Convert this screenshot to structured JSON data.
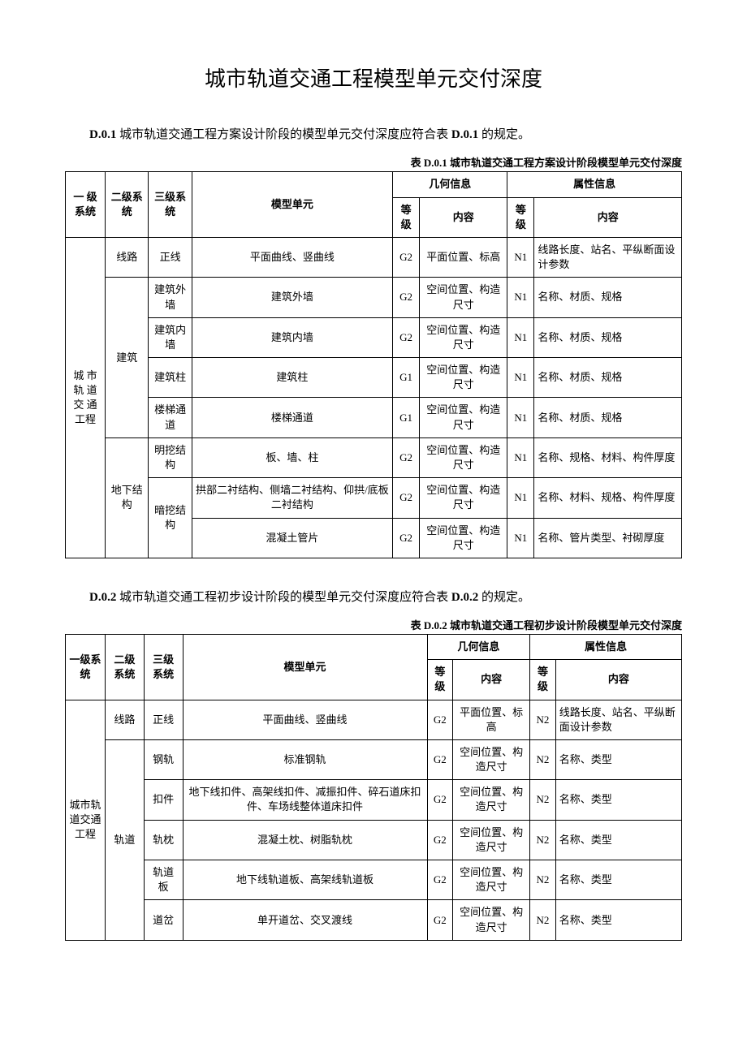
{
  "title": "城市轨道交通工程模型单元交付深度",
  "section1": {
    "intro_prefix": "D.0.1",
    "intro_mid": " 城市轨道交通工程方案设计阶段的模型单元交付深度应符合表 ",
    "intro_ref": "D.0.1",
    "intro_suffix": " 的规定。",
    "caption": "表 D.0.1 城市轨道交通工程方案设计阶段模型单元交付深度",
    "headers": {
      "lv1": "一 级系统",
      "lv2": "二级系统",
      "lv3": "三级系统",
      "unit": "模型单元",
      "geo": "几何信息",
      "attr": "属性信息",
      "grade": "等级",
      "content": "内容"
    },
    "lv1": "城 市轨 道交 通工程",
    "rows": [
      {
        "lv2": "线路",
        "lv2_rowspan": 1,
        "lv3": "正线",
        "lv3_rowspan": 1,
        "unit": "平面曲线、竖曲线",
        "g": "G2",
        "gc": "平面位置、标高",
        "a": "N1",
        "ac": "线路长度、站名、平纵断面设计参数"
      },
      {
        "lv2": "建筑",
        "lv2_rowspan": 4,
        "lv3": "建筑外墙",
        "lv3_rowspan": 1,
        "unit": "建筑外墙",
        "g": "G2",
        "gc": "空间位置、构造尺寸",
        "a": "N1",
        "ac": "名称、材质、规格"
      },
      {
        "lv3": "建筑内墙",
        "lv3_rowspan": 1,
        "unit": "建筑内墙",
        "g": "G2",
        "gc": "空间位置、构造尺寸",
        "a": "N1",
        "ac": "名称、材质、规格"
      },
      {
        "lv3": "建筑柱",
        "lv3_rowspan": 1,
        "unit": "建筑柱",
        "g": "G1",
        "gc": "空间位置、构造尺寸",
        "a": "N1",
        "ac": "名称、材质、规格"
      },
      {
        "lv3": "楼梯通道",
        "lv3_rowspan": 1,
        "unit": "楼梯通道",
        "g": "G1",
        "gc": "空间位置、构造尺寸",
        "a": "N1",
        "ac": "名称、材质、规格"
      },
      {
        "lv2": "地下结构",
        "lv2_rowspan": 3,
        "lv3": "明挖结构",
        "lv3_rowspan": 1,
        "unit": "板、墙、柱",
        "g": "G2",
        "gc": "空间位置、构造尺寸",
        "a": "N1",
        "ac": "名称、规格、材料、构件厚度"
      },
      {
        "lv3": "暗挖结构",
        "lv3_rowspan": 2,
        "unit": "拱部二衬结构、侧墙二衬结构、仰拱/底板二衬结构",
        "g": "G2",
        "gc": "空间位置、构造尺寸",
        "a": "N1",
        "ac": "名称、材料、规格、构件厚度"
      },
      {
        "unit": "混凝土管片",
        "g": "G2",
        "gc": "空间位置、构造尺寸",
        "a": "N1",
        "ac": "名称、管片类型、衬砌厚度"
      }
    ]
  },
  "section2": {
    "intro_prefix": "D.0.2",
    "intro_mid": " 城市轨道交通工程初步设计阶段的模型单元交付深度应符合表 ",
    "intro_ref": "D.0.2",
    "intro_suffix": " 的规定。",
    "caption": "表 D.0.2 城市轨道交通工程初步设计阶段模型单元交付深度",
    "headers": {
      "lv1": "一级系统",
      "lv2": "二级系统",
      "lv3": "三级系统",
      "unit": "模型单元",
      "geo": "几何信息",
      "attr": "属性信息",
      "grade": "等级",
      "content": "内容"
    },
    "lv1": "城市轨道交通工程",
    "rows": [
      {
        "lv2": "线路",
        "lv2_rowspan": 1,
        "lv3": "正线",
        "lv3_rowspan": 1,
        "unit": "平面曲线、竖曲线",
        "g": "G2",
        "gc": "平面位置、标高",
        "a": "N2",
        "ac": "线路长度、站名、平纵断面设计参数"
      },
      {
        "lv2": "轨道",
        "lv2_rowspan": 5,
        "lv3": "钢轨",
        "lv3_rowspan": 1,
        "unit": "标准钢轨",
        "g": "G2",
        "gc": "空间位置、构造尺寸",
        "a": "N2",
        "ac": "名称、类型"
      },
      {
        "lv3": "扣件",
        "lv3_rowspan": 1,
        "unit": "地下线扣件、高架线扣件、减振扣件、碎石道床扣件、车场线整体道床扣件",
        "g": "G2",
        "gc": "空间位置、构造尺寸",
        "a": "N2",
        "ac": "名称、类型"
      },
      {
        "lv3": "轨枕",
        "lv3_rowspan": 1,
        "unit": "混凝土枕、树脂轨枕",
        "g": "G2",
        "gc": "空间位置、构造尺寸",
        "a": "N2",
        "ac": "名称、类型"
      },
      {
        "lv3": "轨道板",
        "lv3_rowspan": 1,
        "unit": "地下线轨道板、高架线轨道板",
        "g": "G2",
        "gc": "空间位置、构造尺寸",
        "a": "N2",
        "ac": "名称、类型"
      },
      {
        "lv3": "道岔",
        "lv3_rowspan": 1,
        "unit": "单开道岔、交叉渡线",
        "g": "G2",
        "gc": "空间位置、构造尺寸",
        "a": "N2",
        "ac": "名称、类型"
      }
    ]
  },
  "col_widths": {
    "lv1": 40,
    "lv2": 50,
    "lv3": 70,
    "unit": 150,
    "g": 50,
    "gc": 120,
    "a": 50,
    "ac": 130
  }
}
